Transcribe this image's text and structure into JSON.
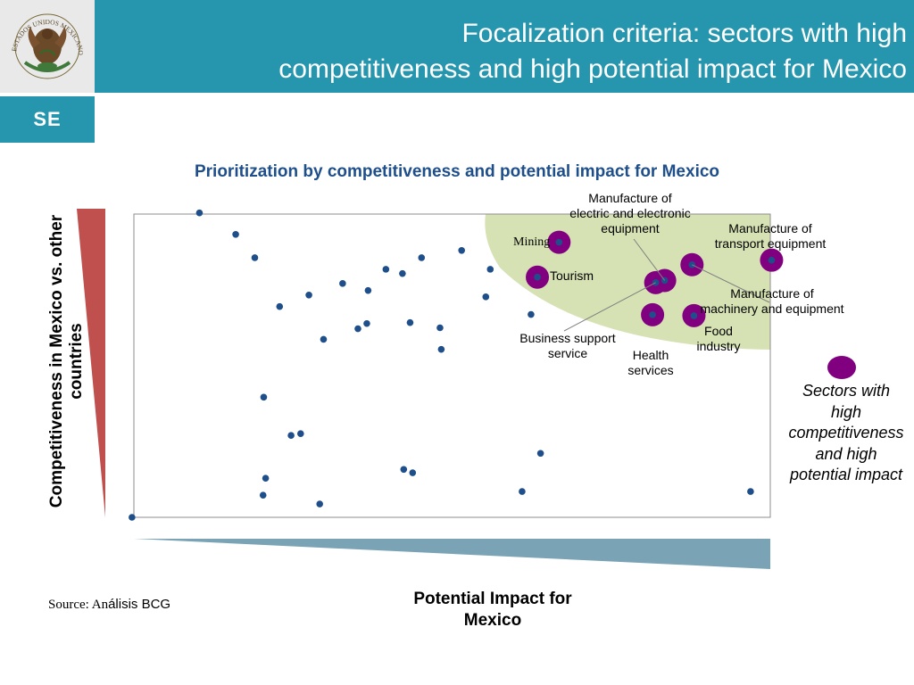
{
  "header": {
    "title_line1": "Focalization criteria: sectors with high",
    "title_line2": "competitiveness and high potential impact for Mexico",
    "emblem_text": "ESTADOS UNIDOS MEXICANOS",
    "badge": "SE"
  },
  "colors": {
    "header": "#2596ad",
    "dot": "#1f4f8a",
    "highlight": "#800080",
    "zone": "#d6e2b4",
    "y_wedge": "#c0504d",
    "x_wedge": "#7aa3b5"
  },
  "chart_data": {
    "type": "scatter",
    "title": "Prioritization by competitiveness and potential impact for Mexico",
    "xlabel": "Potential Impact for Mexico",
    "ylabel": "Competitiveness in Mexico vs. other countries",
    "xlim": [
      0,
      1
    ],
    "ylim": [
      0,
      1
    ],
    "axis_ticks": "none",
    "grid": false,
    "points": [
      {
        "x": 0.103,
        "y": 1.004
      },
      {
        "x": 0.16,
        "y": 0.933
      },
      {
        "x": 0.19,
        "y": 0.856
      },
      {
        "x": 0.229,
        "y": 0.695
      },
      {
        "x": 0.275,
        "y": 0.733
      },
      {
        "x": 0.328,
        "y": 0.771
      },
      {
        "x": 0.368,
        "y": 0.748
      },
      {
        "x": 0.396,
        "y": 0.818
      },
      {
        "x": 0.422,
        "y": 0.804
      },
      {
        "x": 0.452,
        "y": 0.856
      },
      {
        "x": 0.515,
        "y": 0.88
      },
      {
        "x": 0.56,
        "y": 0.818
      },
      {
        "x": 0.553,
        "y": 0.727
      },
      {
        "x": 0.624,
        "y": 0.669
      },
      {
        "x": 0.298,
        "y": 0.587
      },
      {
        "x": 0.352,
        "y": 0.622
      },
      {
        "x": 0.366,
        "y": 0.639
      },
      {
        "x": 0.434,
        "y": 0.642
      },
      {
        "x": 0.481,
        "y": 0.625
      },
      {
        "x": 0.483,
        "y": 0.554
      },
      {
        "x": 0.204,
        "y": 0.396
      },
      {
        "x": 0.247,
        "y": 0.27
      },
      {
        "x": 0.262,
        "y": 0.276
      },
      {
        "x": 0.207,
        "y": 0.129
      },
      {
        "x": 0.203,
        "y": 0.073
      },
      {
        "x": 0.292,
        "y": 0.044
      },
      {
        "x": 0.424,
        "y": 0.158
      },
      {
        "x": 0.438,
        "y": 0.147
      },
      {
        "x": 0.639,
        "y": 0.211
      },
      {
        "x": 0.61,
        "y": 0.085
      },
      {
        "x": 0.969,
        "y": 0.085
      },
      {
        "x": -0.003,
        "y": 0.0
      }
    ],
    "highlighted_points": [
      {
        "x": 0.668,
        "y": 0.907,
        "label": "Mining"
      },
      {
        "x": 0.634,
        "y": 0.792,
        "label": "Tourism"
      },
      {
        "x": 0.834,
        "y": 0.781,
        "label": "Manufacture of electric and electronic equipment"
      },
      {
        "x": 0.82,
        "y": 0.774,
        "label": "Business support service"
      },
      {
        "x": 0.877,
        "y": 0.833,
        "label": "Manufacture of machinery and equipment"
      },
      {
        "x": 1.002,
        "y": 0.848,
        "label": "Manufacture of transport equipment"
      },
      {
        "x": 0.815,
        "y": 0.668,
        "label": "Health services"
      },
      {
        "x": 0.88,
        "y": 0.665,
        "label": "Food industry"
      }
    ],
    "labels": {
      "electric": [
        "Manufacture of",
        "electric and electronic",
        "equipment"
      ],
      "transport": [
        "Manufacture of",
        "transport equipment"
      ],
      "mining": "Mining",
      "tourism": "Tourism",
      "machinery": [
        "Manufacture of",
        "machinery and equipment"
      ],
      "business": [
        "Business support",
        "service"
      ],
      "health": [
        "Health",
        "services"
      ],
      "food": [
        "Food",
        "industry"
      ]
    },
    "legend": {
      "text": [
        "Sectors with",
        "high",
        "competitiveness",
        "and high",
        "potential impact"
      ],
      "position": "right"
    }
  },
  "source": {
    "prefix": "Source: An",
    "rest": "álisis BCG"
  }
}
